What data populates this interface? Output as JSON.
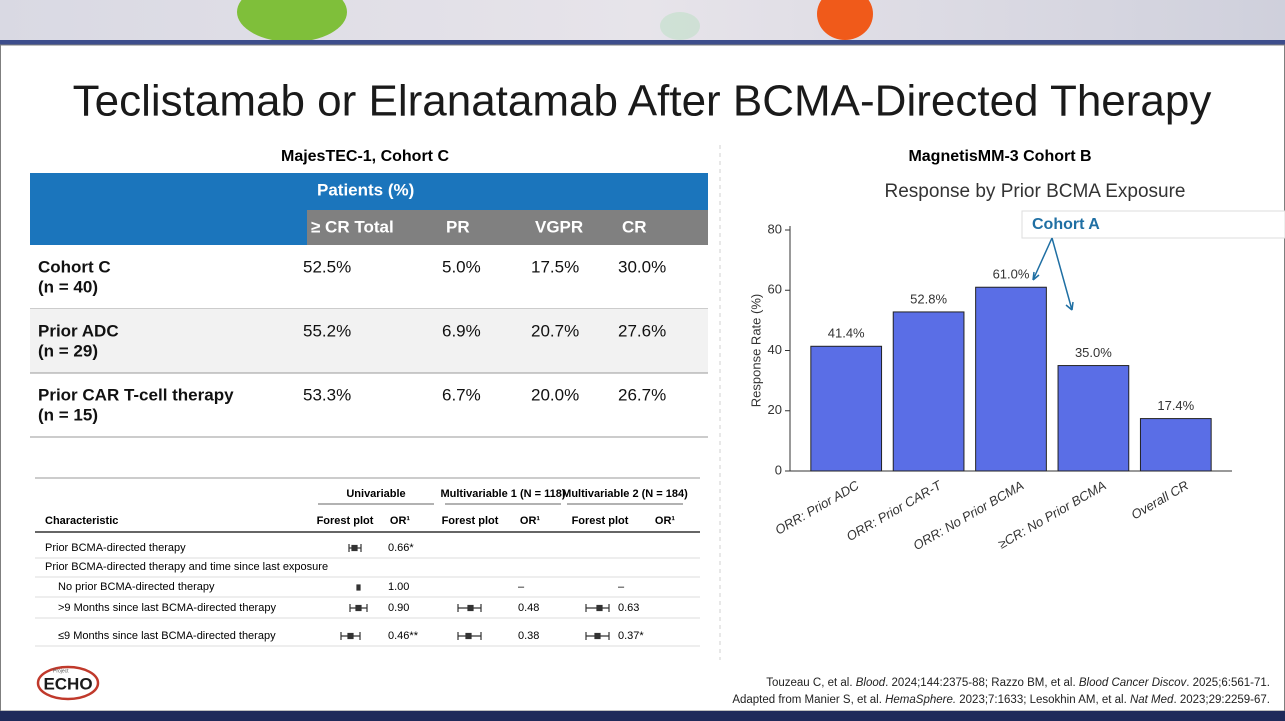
{
  "title": "Teclistamab or Elranatamab After BCMA-Directed Therapy",
  "left_heading": "MajesTEC-1, Cohort C",
  "right_heading": "MagnetisMM-3 Cohort B",
  "table": {
    "group_header": "Patients (%)",
    "columns": [
      "≥ CR Total",
      "PR",
      "VGPR",
      "CR"
    ],
    "rows": [
      {
        "label": [
          "Cohort C",
          "(n = 40)"
        ],
        "cells": [
          "52.5%",
          "5.0%",
          "17.5%",
          "30.0%"
        ]
      },
      {
        "label": [
          "Prior ADC",
          "(n = 29)"
        ],
        "cells": [
          "55.2%",
          "6.9%",
          "20.7%",
          "27.6%"
        ]
      },
      {
        "label": [
          "Prior CAR T-cell therapy",
          "(n = 15)"
        ],
        "cells": [
          "53.3%",
          "6.7%",
          "20.0%",
          "26.7%"
        ]
      }
    ]
  },
  "forest_table": {
    "groups": [
      "Univariable",
      "Multivariable 1 (N = 118)",
      "Multivariable 2 (N = 184)"
    ],
    "columns": [
      "Characteristic",
      "Forest plot",
      "OR¹",
      "Forest plot",
      "OR¹",
      "Forest plot",
      "OR¹"
    ],
    "rows": [
      [
        "Prior BCMA-directed therapy",
        "0.66*"
      ],
      [
        "Prior BCMA-directed therapy and time since last exposure"
      ],
      [
        "No prior BCMA-directed therapy",
        "1.00",
        "–",
        "–"
      ],
      [
        ">9 Months since last BCMA-directed therapy",
        "0.90",
        "0.48",
        "0.63"
      ],
      [
        "≤9 Months since last BCMA-directed therapy",
        "0.46**",
        "0.38",
        "0.37*"
      ]
    ]
  },
  "chart_data": {
    "type": "bar",
    "title": "Response by Prior BCMA Exposure",
    "y_label": "Response Rate (%)",
    "categories": [
      "ORR: Prior ADC",
      "ORR: Prior CAR-T",
      "ORR: No Prior BCMA",
      "≥CR: No Prior BCMA",
      "Overall CR"
    ],
    "values": [
      41.4,
      52.8,
      61.0,
      35.0,
      17.4
    ],
    "value_labels": [
      "41.4%",
      "52.8%",
      "61.0%",
      "35.0%",
      "17.4%"
    ],
    "color": "#5a6ee6",
    "ylim": [
      0,
      80
    ],
    "yticks": [
      0,
      20,
      40,
      60,
      80
    ],
    "annotation": "Cohort A"
  },
  "logo": {
    "small": "Project",
    "main": "ECHO"
  },
  "footer": [
    [
      "Touzeau C, et al. ",
      "Blood",
      ". 2024;144:2375-88; Razzo BM, et al. ",
      "Blood Cancer Discov",
      ". 2025;6:561-71."
    ],
    [
      "Adapted from Manier S, et al. ",
      "HemaSphere.",
      " 2023;7:1633; Lesokhin AM, et al. ",
      "Nat Med",
      ". 2023;29:2259-67."
    ]
  ]
}
